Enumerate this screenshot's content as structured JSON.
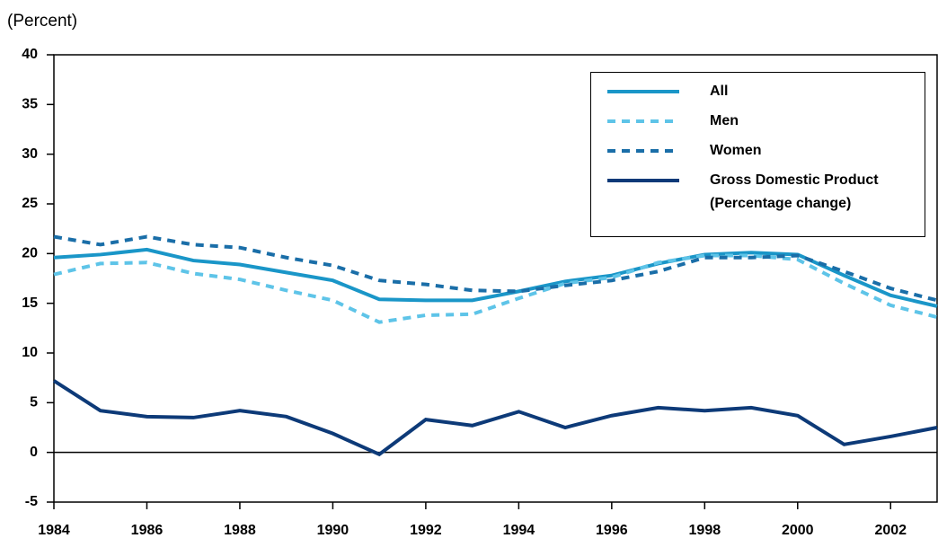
{
  "chart_data": {
    "type": "line",
    "ylabel": "(Percent)",
    "x": [
      1984,
      1985,
      1986,
      1987,
      1988,
      1989,
      1990,
      1991,
      1992,
      1993,
      1994,
      1995,
      1996,
      1997,
      1998,
      1999,
      2000,
      2001,
      2002,
      2003
    ],
    "series": [
      {
        "name": "All",
        "color": "#1a96c8",
        "dash": false,
        "values": [
          19.6,
          19.9,
          20.4,
          19.3,
          18.9,
          18.1,
          17.3,
          15.4,
          15.3,
          15.3,
          16.2,
          17.2,
          17.8,
          19.0,
          19.9,
          20.1,
          19.9,
          17.8,
          15.8,
          14.7
        ]
      },
      {
        "name": "Men",
        "color": "#5ec4e8",
        "dash": true,
        "values": [
          17.9,
          19.0,
          19.1,
          18.0,
          17.4,
          16.3,
          15.3,
          13.1,
          13.8,
          13.9,
          15.5,
          17.0,
          17.6,
          19.1,
          19.8,
          19.8,
          19.4,
          17.0,
          14.8,
          13.6
        ]
      },
      {
        "name": "Women",
        "color": "#1a6ea8",
        "dash": true,
        "values": [
          21.7,
          20.9,
          21.7,
          20.9,
          20.6,
          19.6,
          18.8,
          17.3,
          16.9,
          16.3,
          16.2,
          16.8,
          17.3,
          18.2,
          19.6,
          19.6,
          19.8,
          18.2,
          16.5,
          15.3
        ]
      },
      {
        "name": "Gross Domestic Product (Percentage change)",
        "color": "#0d3a78",
        "dash": false,
        "values": [
          7.2,
          4.2,
          3.6,
          3.5,
          4.2,
          3.6,
          1.9,
          -0.2,
          3.3,
          2.7,
          4.1,
          2.5,
          3.7,
          4.5,
          4.2,
          4.5,
          3.7,
          0.8,
          1.6,
          2.5
        ]
      }
    ],
    "xlim": [
      1984,
      2003
    ],
    "xticks": [
      1984,
      1986,
      1988,
      1990,
      1992,
      1994,
      1996,
      1998,
      2000,
      2002
    ],
    "ylim": [
      -5,
      40
    ],
    "yticks": [
      -5,
      0,
      5,
      10,
      15,
      20,
      25,
      30,
      35,
      40
    ],
    "legend": "upper right"
  }
}
